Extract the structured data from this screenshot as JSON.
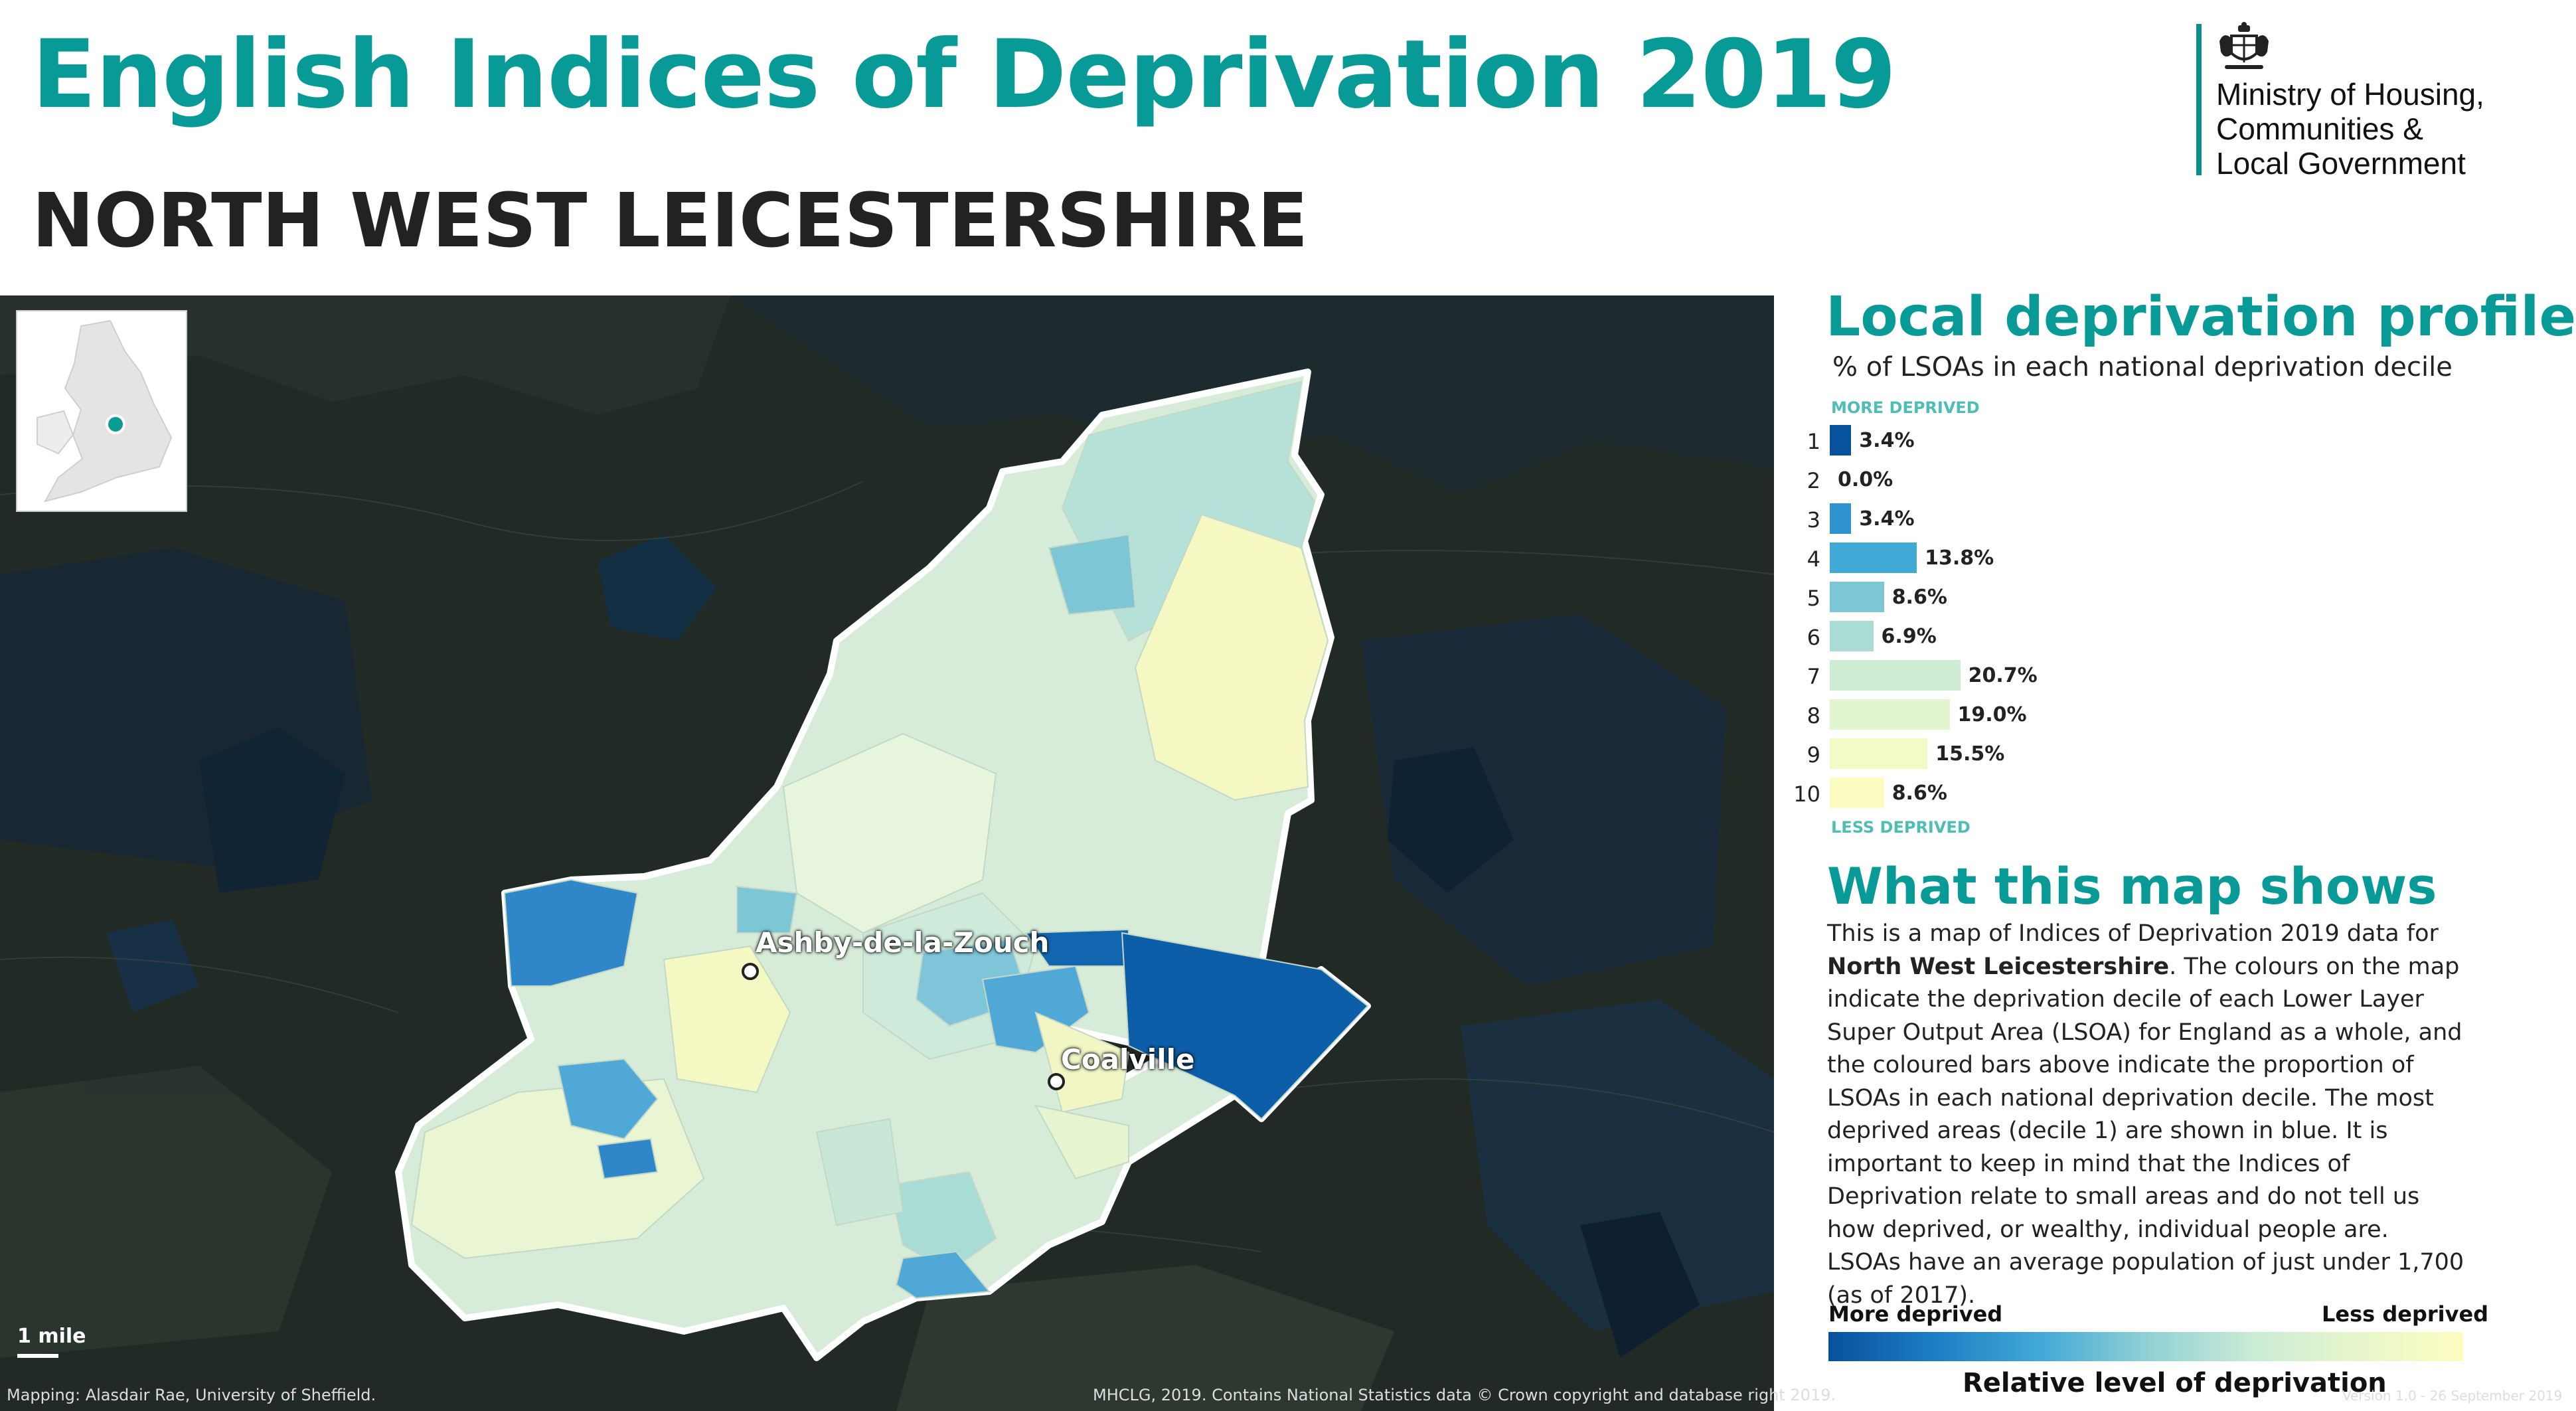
{
  "header": {
    "title": "English Indices of Deprivation 2019",
    "area_name": "NORTH WEST LEICESTERSHIRE"
  },
  "logo": {
    "ministry_lines": [
      "Ministry of Housing,",
      "Communities &",
      "Local Government"
    ],
    "accent_color": "#0b8f8c"
  },
  "map": {
    "towns": [
      {
        "name": "Ashby-de-la-Zouch"
      },
      {
        "name": "Coalville"
      }
    ],
    "scale_label": "1 mile",
    "credit_left": "Mapping: Alasdair Rae, University of Sheffield.",
    "credit_right": "MHCLG, 2019. Contains National Statistics data © Crown copyright and database right 2019."
  },
  "profile": {
    "title": "Local deprivation profile",
    "subtitle": "% of LSOAs in each national deprivation decile",
    "top_tag": "MORE DEPRIVED",
    "bottom_tag": "LESS DEPRIVED"
  },
  "chart_data": {
    "type": "bar",
    "orientation": "horizontal",
    "categories": [
      "1",
      "2",
      "3",
      "4",
      "5",
      "6",
      "7",
      "8",
      "9",
      "10"
    ],
    "values": [
      3.4,
      0.0,
      3.4,
      13.8,
      8.6,
      6.9,
      20.7,
      19.0,
      15.5,
      8.6
    ],
    "value_labels": [
      "3.4%",
      "0.0%",
      "3.4%",
      "13.8%",
      "8.6%",
      "6.9%",
      "20.7%",
      "19.0%",
      "15.5%",
      "8.6%"
    ],
    "colors": [
      "#08519c",
      "#1c7ec4",
      "#2e92cf",
      "#41a9d6",
      "#7cc6d6",
      "#a9dcd4",
      "#cdecd3",
      "#e2f4d0",
      "#f3fac6",
      "#fcfcc0"
    ]
  },
  "explainer": {
    "title": "What this map shows",
    "text_before": "This is a map of Indices of Deprivation 2019 data for ",
    "text_bold": "North West Leicestershire",
    "text_after": ". The colours on the map indicate the deprivation decile of each Lower Layer Super Output Area (LSOA) for England as a whole, and the coloured bars above indicate the proportion of LSOAs in each national deprivation decile. The most deprived areas (decile 1) are shown in blue. It is important to keep in mind that the Indices of Deprivation relate to small areas and do not tell us how deprived, or wealthy, individual people are. LSOAs have an average population of just under 1,700 (as of 2017)."
  },
  "legend": {
    "left_label": "More deprived",
    "right_label": "Less deprived",
    "caption": "Relative level of deprivation"
  },
  "footer": {
    "version": "Version 1.0 - 26 September 2019"
  }
}
